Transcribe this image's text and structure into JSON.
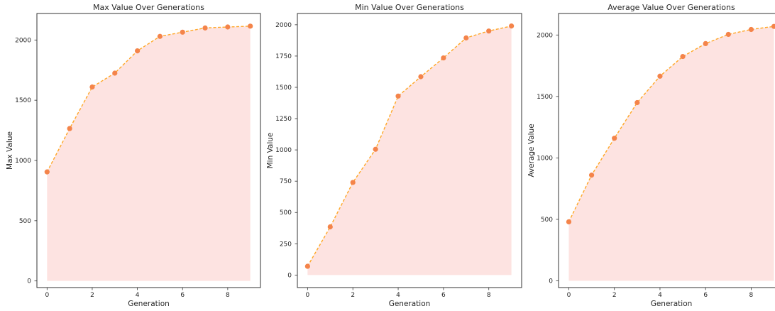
{
  "chart_data": [
    {
      "type": "area",
      "title": "Max Value Over Generations",
      "xlabel": "Generation",
      "ylabel": "Max Value",
      "x": [
        0,
        1,
        2,
        3,
        4,
        5,
        6,
        7,
        8,
        9
      ],
      "series": [
        {
          "values": [
            905,
            1265,
            1610,
            1725,
            1910,
            2030,
            2065,
            2100,
            2108,
            2115
          ]
        }
      ],
      "xticks": [
        0,
        2,
        4,
        6,
        8
      ],
      "yticks": [
        0,
        500,
        1000,
        1500,
        2000
      ],
      "xlim": [
        -0.45,
        9.45
      ],
      "ylim": [
        -55,
        2220
      ],
      "grid": false
    },
    {
      "type": "area",
      "title": "Min Value Over Generations",
      "xlabel": "Generation",
      "ylabel": "Min Value",
      "x": [
        0,
        1,
        2,
        3,
        4,
        5,
        6,
        7,
        8,
        9
      ],
      "series": [
        {
          "values": [
            70,
            385,
            740,
            1005,
            1430,
            1585,
            1735,
            1895,
            1950,
            1990
          ]
        }
      ],
      "xticks": [
        0,
        2,
        4,
        6,
        8
      ],
      "yticks": [
        0,
        250,
        500,
        750,
        1000,
        1250,
        1500,
        1750,
        2000
      ],
      "xlim": [
        -0.45,
        9.45
      ],
      "ylim": [
        -100,
        2090
      ],
      "grid": false
    },
    {
      "type": "area",
      "title": "Average Value Over Generations",
      "xlabel": "Generation",
      "ylabel": "Average Value",
      "x": [
        0,
        1,
        2,
        3,
        4,
        5,
        6,
        7,
        8,
        9
      ],
      "series": [
        {
          "values": [
            480,
            860,
            1160,
            1450,
            1665,
            1825,
            1930,
            2005,
            2045,
            2070
          ]
        }
      ],
      "xticks": [
        0,
        2,
        4,
        6,
        8
      ],
      "yticks": [
        0,
        500,
        1000,
        1500,
        2000
      ],
      "xlim": [
        -0.45,
        9.45
      ],
      "ylim": [
        -55,
        2175
      ],
      "grid": false
    }
  ],
  "style": {
    "line_color": "#ffa726",
    "marker_color": "#f4844a",
    "fill_color": "#fde3e1",
    "axis_color": "#333333",
    "text_color": "#262626"
  }
}
